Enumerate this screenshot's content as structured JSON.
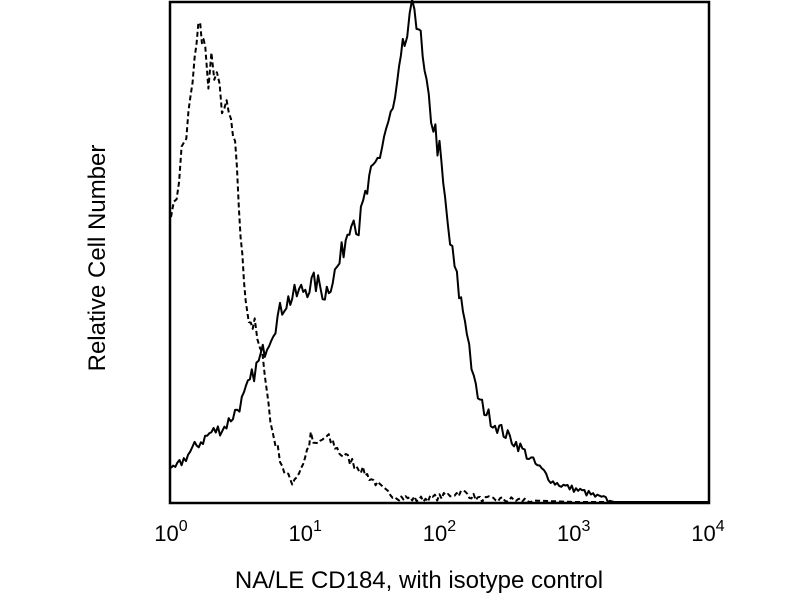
{
  "chart_data": {
    "type": "line",
    "title": "",
    "xlabel": "NA/LE CD184, with isotype control",
    "ylabel": "Relative Cell Number",
    "x_scale": "log",
    "xlim": [
      1,
      10000
    ],
    "ylim": [
      0,
      1
    ],
    "grid": false,
    "legend": "none",
    "x_ticks": [
      {
        "value": 1,
        "base": "10",
        "exp": "0"
      },
      {
        "value": 10,
        "base": "10",
        "exp": "1"
      },
      {
        "value": 100,
        "base": "10",
        "exp": "2"
      },
      {
        "value": 1000,
        "base": "10",
        "exp": "3"
      },
      {
        "value": 10000,
        "base": "10",
        "exp": "4"
      }
    ],
    "series": [
      {
        "style": "dashed",
        "color": "#000000",
        "points": [
          [
            1.0,
            0.6
          ],
          [
            1.05,
            0.58
          ],
          [
            1.1,
            0.62
          ],
          [
            1.15,
            0.66
          ],
          [
            1.2,
            0.7
          ],
          [
            1.3,
            0.74
          ],
          [
            1.4,
            0.8
          ],
          [
            1.5,
            0.88
          ],
          [
            1.6,
            0.94
          ],
          [
            1.65,
            0.98
          ],
          [
            1.7,
            0.93
          ],
          [
            1.8,
            0.9
          ],
          [
            1.9,
            0.86
          ],
          [
            2.0,
            0.89
          ],
          [
            2.1,
            0.85
          ],
          [
            2.3,
            0.82
          ],
          [
            2.5,
            0.79
          ],
          [
            2.8,
            0.76
          ],
          [
            3.0,
            0.7
          ],
          [
            3.2,
            0.6
          ],
          [
            3.4,
            0.48
          ],
          [
            3.6,
            0.42
          ],
          [
            3.8,
            0.37
          ],
          [
            4.2,
            0.35
          ],
          [
            4.6,
            0.3
          ],
          [
            5.0,
            0.27
          ],
          [
            5.5,
            0.16
          ],
          [
            6.0,
            0.12
          ],
          [
            7.0,
            0.06
          ],
          [
            8.0,
            0.04
          ],
          [
            9.0,
            0.06
          ],
          [
            10.0,
            0.09
          ],
          [
            11.0,
            0.13
          ],
          [
            12.0,
            0.11
          ],
          [
            14.0,
            0.13
          ],
          [
            16.0,
            0.12
          ],
          [
            18.0,
            0.1
          ],
          [
            20.0,
            0.09
          ],
          [
            25.0,
            0.07
          ],
          [
            30.0,
            0.05
          ],
          [
            40.0,
            0.02
          ],
          [
            50.0,
            0.01
          ],
          [
            70.0,
            0.005
          ],
          [
            100.0,
            0.01
          ],
          [
            150.0,
            0.02
          ],
          [
            200.0,
            0.005
          ],
          [
            400.0,
            0.004
          ],
          [
            1000.0,
            0.0
          ],
          [
            10000.0,
            0.0
          ]
        ]
      },
      {
        "style": "solid",
        "color": "#000000",
        "points": [
          [
            1.0,
            0.06
          ],
          [
            1.2,
            0.08
          ],
          [
            1.5,
            0.11
          ],
          [
            2.0,
            0.14
          ],
          [
            2.5,
            0.15
          ],
          [
            3.0,
            0.18
          ],
          [
            3.5,
            0.21
          ],
          [
            4.0,
            0.25
          ],
          [
            4.5,
            0.28
          ],
          [
            5.0,
            0.31
          ],
          [
            6.0,
            0.36
          ],
          [
            7.0,
            0.4
          ],
          [
            8.0,
            0.41
          ],
          [
            9.0,
            0.42
          ],
          [
            10.0,
            0.43
          ],
          [
            12.0,
            0.44
          ],
          [
            14.0,
            0.42
          ],
          [
            16.0,
            0.45
          ],
          [
            18.0,
            0.48
          ],
          [
            20.0,
            0.53
          ],
          [
            22.0,
            0.58
          ],
          [
            25.0,
            0.55
          ],
          [
            28.0,
            0.61
          ],
          [
            32.0,
            0.66
          ],
          [
            36.0,
            0.7
          ],
          [
            40.0,
            0.75
          ],
          [
            45.0,
            0.78
          ],
          [
            50.0,
            0.85
          ],
          [
            55.0,
            0.92
          ],
          [
            60.0,
            0.95
          ],
          [
            65.0,
            1.0
          ],
          [
            70.0,
            0.96
          ],
          [
            75.0,
            0.88
          ],
          [
            80.0,
            0.82
          ],
          [
            90.0,
            0.76
          ],
          [
            100.0,
            0.7
          ],
          [
            110.0,
            0.6
          ],
          [
            120.0,
            0.52
          ],
          [
            140.0,
            0.42
          ],
          [
            160.0,
            0.35
          ],
          [
            180.0,
            0.24
          ],
          [
            200.0,
            0.2
          ],
          [
            250.0,
            0.16
          ],
          [
            300.0,
            0.14
          ],
          [
            400.0,
            0.11
          ],
          [
            500.0,
            0.08
          ],
          [
            600.0,
            0.06
          ],
          [
            700.0,
            0.04
          ],
          [
            900.0,
            0.03
          ],
          [
            1200.0,
            0.02
          ],
          [
            1500.0,
            0.01
          ],
          [
            2000.0,
            0.0
          ],
          [
            10000.0,
            0.0
          ]
        ]
      }
    ]
  }
}
